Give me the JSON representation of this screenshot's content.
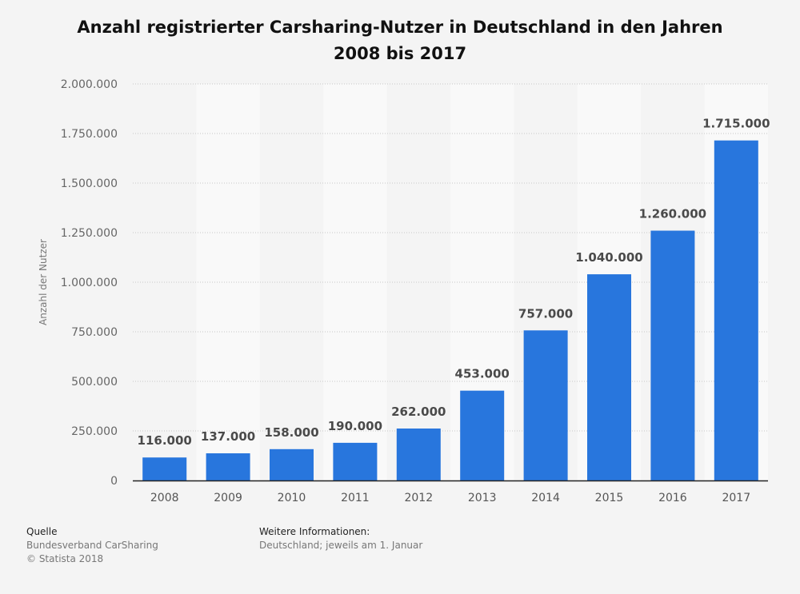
{
  "chart_data": {
    "type": "bar",
    "title": "Anzahl registrierter Carsharing-Nutzer in Deutschland in den Jahren 2008 bis 2017",
    "xlabel": "",
    "ylabel": "Anzahl der Nutzer",
    "categories": [
      "2008",
      "2009",
      "2010",
      "2011",
      "2012",
      "2013",
      "2014",
      "2015",
      "2016",
      "2017"
    ],
    "values": [
      116000,
      137000,
      158000,
      190000,
      262000,
      453000,
      757000,
      1040000,
      1260000,
      1715000
    ],
    "data_labels": [
      "116.000",
      "137.000",
      "158.000",
      "190.000",
      "262.000",
      "453.000",
      "757.000",
      "1.040.000",
      "1.260.000",
      "1.715.000"
    ],
    "ylim": [
      0,
      2000000
    ],
    "yticks": [
      0,
      250000,
      500000,
      750000,
      1000000,
      1250000,
      1500000,
      1750000,
      2000000
    ],
    "ytick_labels": [
      "0",
      "250.000",
      "500.000",
      "750.000",
      "1.000.000",
      "1.250.000",
      "1.500.000",
      "1.750.000",
      "2.000.000"
    ],
    "grid": true,
    "legend": "none",
    "bar_color": "#2876dd"
  },
  "footer": {
    "source_heading": "Quelle",
    "source_text": "Bundesverband CarSharing",
    "copyright": "© Statista 2018",
    "info_heading": "Weitere Informationen:",
    "info_text": "Deutschland; jeweils am 1. Januar"
  }
}
